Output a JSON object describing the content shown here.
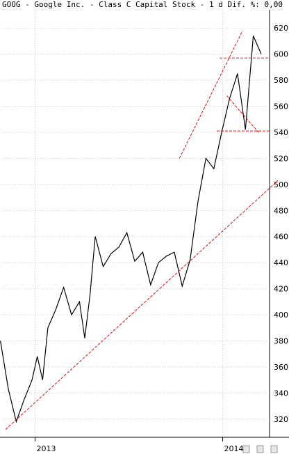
{
  "window": {
    "title": "GOOG - Google Inc. - Class C Capital Stock - 1 d Dif. %: 0,00"
  },
  "chart_data": {
    "type": "line",
    "title": "GOOG - Google Inc. - Class C Capital Stock - 1 d Dif. %: 0,00",
    "xlabel": "",
    "ylabel": "",
    "ylim": [
      306,
      634
    ],
    "y_ticks": [
      320,
      340,
      360,
      380,
      400,
      420,
      440,
      460,
      480,
      500,
      520,
      540,
      560,
      580,
      600,
      620
    ],
    "x_ticks": [
      "2013",
      "2014"
    ],
    "grid": true,
    "series": [
      {
        "x": [
          "2012-11",
          "2012-11",
          "2012-12",
          "2012-12",
          "2013-01",
          "2013-01",
          "2013-01",
          "2013-02",
          "2013-02",
          "2013-03",
          "2013-03",
          "2013-04",
          "2013-04",
          "2013-04",
          "2013-05",
          "2013-05",
          "2013-06",
          "2013-06",
          "2013-07",
          "2013-07",
          "2013-08",
          "2013-08",
          "2013-09",
          "2013-09",
          "2013-10",
          "2013-10",
          "2013-11",
          "2013-11",
          "2013-12",
          "2013-12",
          "2014-01",
          "2014-01",
          "2014-02",
          "2014-02",
          "2014-03",
          "2014-03"
        ],
        "y": [
          380,
          343,
          318,
          335,
          350,
          368,
          350,
          390,
          404,
          421,
          400,
          410,
          382,
          415,
          460,
          437,
          447,
          452,
          463,
          441,
          448,
          423,
          440,
          445,
          448,
          422,
          442,
          487,
          520,
          512,
          540,
          566,
          585,
          542,
          614,
          600
        ],
        "values_note_removed": null
      }
    ],
    "annotations": {
      "trend_lines": [
        {
          "kind": "support",
          "from": [
            "2012-11",
            312
          ],
          "to": [
            "2014-03",
            503
          ]
        },
        {
          "kind": "channel",
          "from": [
            "2013-10",
            520
          ],
          "to": [
            "2014-02",
            618
          ]
        },
        {
          "kind": "channel-lower",
          "from": [
            "2014-01",
            568
          ],
          "to": [
            "2014-03",
            540
          ]
        },
        {
          "kind": "horizontal",
          "level": 597
        },
        {
          "kind": "horizontal",
          "level": 541
        }
      ]
    }
  }
}
